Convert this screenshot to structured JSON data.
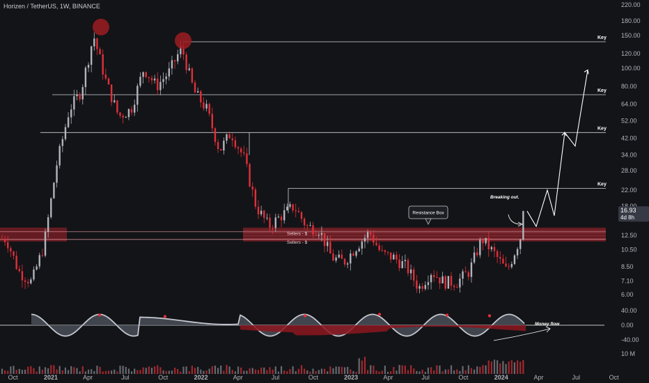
{
  "header": {
    "symbol": "Horizen / TetherUS",
    "interval": "1W",
    "exchange": "BINANCE"
  },
  "price_scale": {
    "ticks": [
      "220.00",
      "180.00",
      "150.00",
      "120.00",
      "100.00",
      "80.00",
      "64.00",
      "52.00",
      "42.00",
      "34.00",
      "28.00",
      "22.00",
      "18.00",
      "12.50",
      "10.50",
      "8.50",
      "7.10",
      "6.00"
    ],
    "last_price": "16.93",
    "countdown": "4d 8h"
  },
  "oscillator_scale": {
    "ticks": [
      "40.00",
      "0.00",
      "-40.00"
    ]
  },
  "volume_scale": {
    "ticks": [
      "10 M"
    ]
  },
  "time_axis": {
    "ticks": [
      "Oct",
      "2021",
      "Apr",
      "Jul",
      "Oct",
      "2022",
      "Apr",
      "Jul",
      "Oct",
      "2023",
      "Apr",
      "Jul",
      "Oct",
      "2024",
      "Apr",
      "Jul",
      "Oct"
    ]
  },
  "annotations": {
    "key_label": "Key",
    "resistance_box": "Resistance Box",
    "breaking_out": "Breaking out.",
    "money_flow": "Money flow",
    "sellers_1": "Sellers - $",
    "sellers_2": "Sellers - $"
  },
  "colors": {
    "background": "#131417",
    "up": "#b2b5be",
    "down": "#e0303a",
    "zone": "#a8232c",
    "line": "#d1d4dc",
    "osc_area": "#4a4e57",
    "flow_red": "#8d1620"
  },
  "chart_data": {
    "type": "candlestick",
    "scale": "log",
    "interval": "1W",
    "ylim": [
      5.2,
      240
    ],
    "ohlc_weekly_close_approx": [
      {
        "date": "2020-09",
        "close": 12
      },
      {
        "date": "2020-10",
        "close": 8
      },
      {
        "date": "2020-11",
        "close": 7
      },
      {
        "date": "2020-12",
        "close": 11
      },
      {
        "date": "2021-01",
        "close": 30
      },
      {
        "date": "2021-02",
        "close": 60
      },
      {
        "date": "2021-03",
        "close": 75
      },
      {
        "date": "2021-04",
        "close": 150
      },
      {
        "date": "2021-05",
        "close": 85
      },
      {
        "date": "2021-06",
        "close": 55
      },
      {
        "date": "2021-07",
        "close": 60
      },
      {
        "date": "2021-08",
        "close": 100
      },
      {
        "date": "2021-09",
        "close": 80
      },
      {
        "date": "2021-10",
        "close": 95
      },
      {
        "date": "2021-11",
        "close": 130
      },
      {
        "date": "2021-12",
        "close": 75
      },
      {
        "date": "2022-01",
        "close": 60
      },
      {
        "date": "2022-02",
        "close": 36
      },
      {
        "date": "2022-03",
        "close": 45
      },
      {
        "date": "2022-04",
        "close": 33
      },
      {
        "date": "2022-05",
        "close": 18
      },
      {
        "date": "2022-06",
        "close": 14
      },
      {
        "date": "2022-07",
        "close": 16
      },
      {
        "date": "2022-08",
        "close": 18
      },
      {
        "date": "2022-09",
        "close": 14
      },
      {
        "date": "2022-10",
        "close": 13.5
      },
      {
        "date": "2022-11",
        "close": 9.5
      },
      {
        "date": "2022-12",
        "close": 9
      },
      {
        "date": "2023-01",
        "close": 11
      },
      {
        "date": "2023-02",
        "close": 13
      },
      {
        "date": "2023-03",
        "close": 10
      },
      {
        "date": "2023-04",
        "close": 9.5
      },
      {
        "date": "2023-05",
        "close": 8.5
      },
      {
        "date": "2023-06",
        "close": 6.5
      },
      {
        "date": "2023-07",
        "close": 8
      },
      {
        "date": "2023-08",
        "close": 7
      },
      {
        "date": "2023-09",
        "close": 7
      },
      {
        "date": "2023-10",
        "close": 8
      },
      {
        "date": "2023-11",
        "close": 12
      },
      {
        "date": "2023-12",
        "close": 10
      },
      {
        "date": "2024-01",
        "close": 8
      },
      {
        "date": "2024-02",
        "close": 12
      },
      {
        "date": "2024-03",
        "close": 16.93
      }
    ],
    "key_levels": [
      139,
      72,
      45,
      22.5
    ],
    "resistance_zone": [
      11.6,
      13.8
    ],
    "projection_path": [
      {
        "date": "2024-03",
        "price": 16.93
      },
      {
        "date": "2024-03",
        "price": 14
      },
      {
        "date": "2024-04",
        "price": 22
      },
      {
        "date": "2024-04",
        "price": 16
      },
      {
        "date": "2024-05",
        "price": 45
      },
      {
        "date": "2024-06",
        "price": 38
      },
      {
        "date": "2024-06",
        "price": 98
      }
    ]
  }
}
